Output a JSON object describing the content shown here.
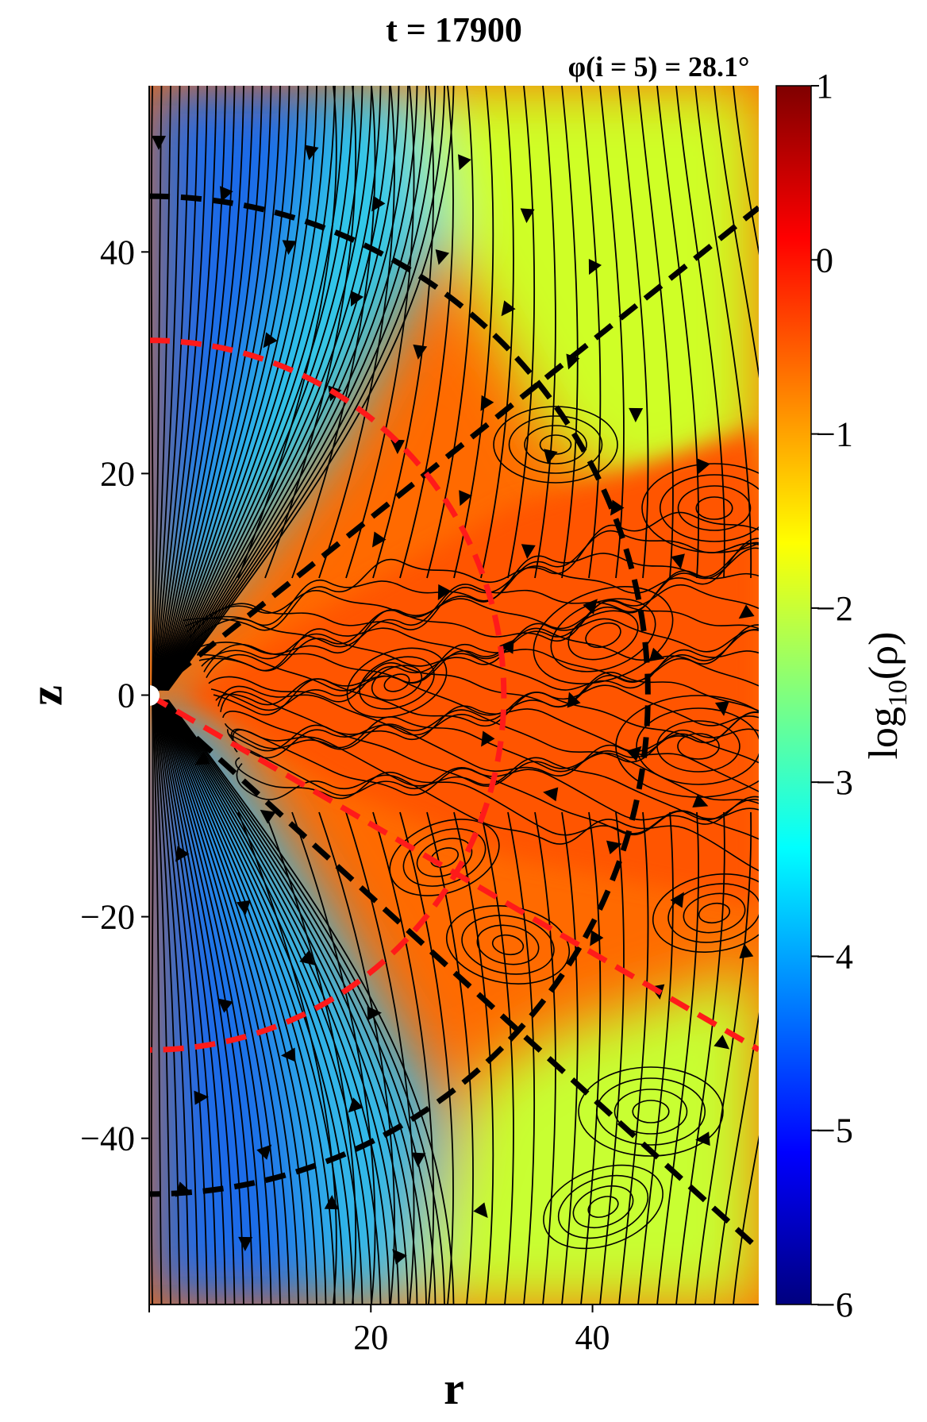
{
  "chart_data": {
    "type": "heatmap",
    "title": "t = 17900",
    "subtitle": "φ(i = 5) = 28.1°",
    "xlabel": "r",
    "ylabel": "z",
    "xlim": [
      0,
      55
    ],
    "ylim": [
      -55,
      55
    ],
    "x_ticks": [
      20,
      40
    ],
    "x_tick_labels": [
      "20",
      "40"
    ],
    "y_ticks": [
      40,
      20,
      0,
      -20,
      -40
    ],
    "y_tick_labels": [
      "40",
      "20",
      "0",
      "−20",
      "−40"
    ],
    "colorbar": {
      "label": "log10(ρ)",
      "label_main": "log",
      "label_sub": "10",
      "label_arg": "(ρ)",
      "range": [
        -6,
        1
      ],
      "ticks": [
        1,
        0,
        -1,
        -2,
        -3,
        -4,
        -5,
        -6
      ],
      "tick_labels": [
        "1",
        "0",
        "−1",
        "−2",
        "−3",
        "−4",
        "−5",
        "−6"
      ],
      "colormap": "jet"
    },
    "overlays": {
      "red_dashed": [
        {
          "shape": "circle",
          "radius": 32,
          "color": "#ff1a1a"
        },
        {
          "shape": "line",
          "from": [
            0,
            0
          ],
          "to": [
            55,
            -32
          ],
          "color": "#ff1a1a"
        }
      ],
      "black_dashed": [
        {
          "shape": "circle",
          "radius": 45,
          "color": "#000000"
        },
        {
          "shape": "line",
          "from": [
            0,
            0
          ],
          "to": [
            55,
            44
          ],
          "color": "#000000"
        },
        {
          "shape": "line",
          "from": [
            0,
            0
          ],
          "to": [
            55,
            -50
          ],
          "color": "#000000"
        }
      ]
    },
    "grid": false,
    "streamlines": true
  },
  "colors": {
    "jet": [
      "#00007f",
      "#0000ff",
      "#007fff",
      "#00ffff",
      "#7fff7f",
      "#ffff00",
      "#ff7f00",
      "#ff0000",
      "#7f0000"
    ]
  }
}
